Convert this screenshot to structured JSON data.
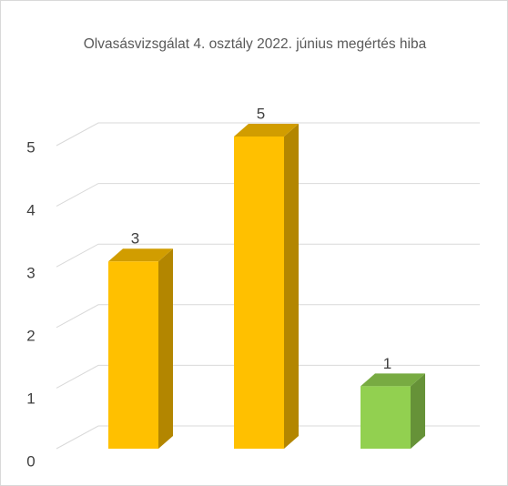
{
  "chart_data": {
    "type": "bar3d",
    "title": "Olvasásvizsgálat 4. osztály 2022. június megértés hiba",
    "categories": [
      null,
      null,
      null
    ],
    "values": [
      3,
      5,
      1
    ],
    "colors": [
      "#FFC000",
      "#FFC000",
      "#92D050"
    ],
    "ylim": [
      0,
      5
    ],
    "yticks": [
      0,
      1,
      2,
      3,
      4,
      5
    ],
    "grid": true
  }
}
